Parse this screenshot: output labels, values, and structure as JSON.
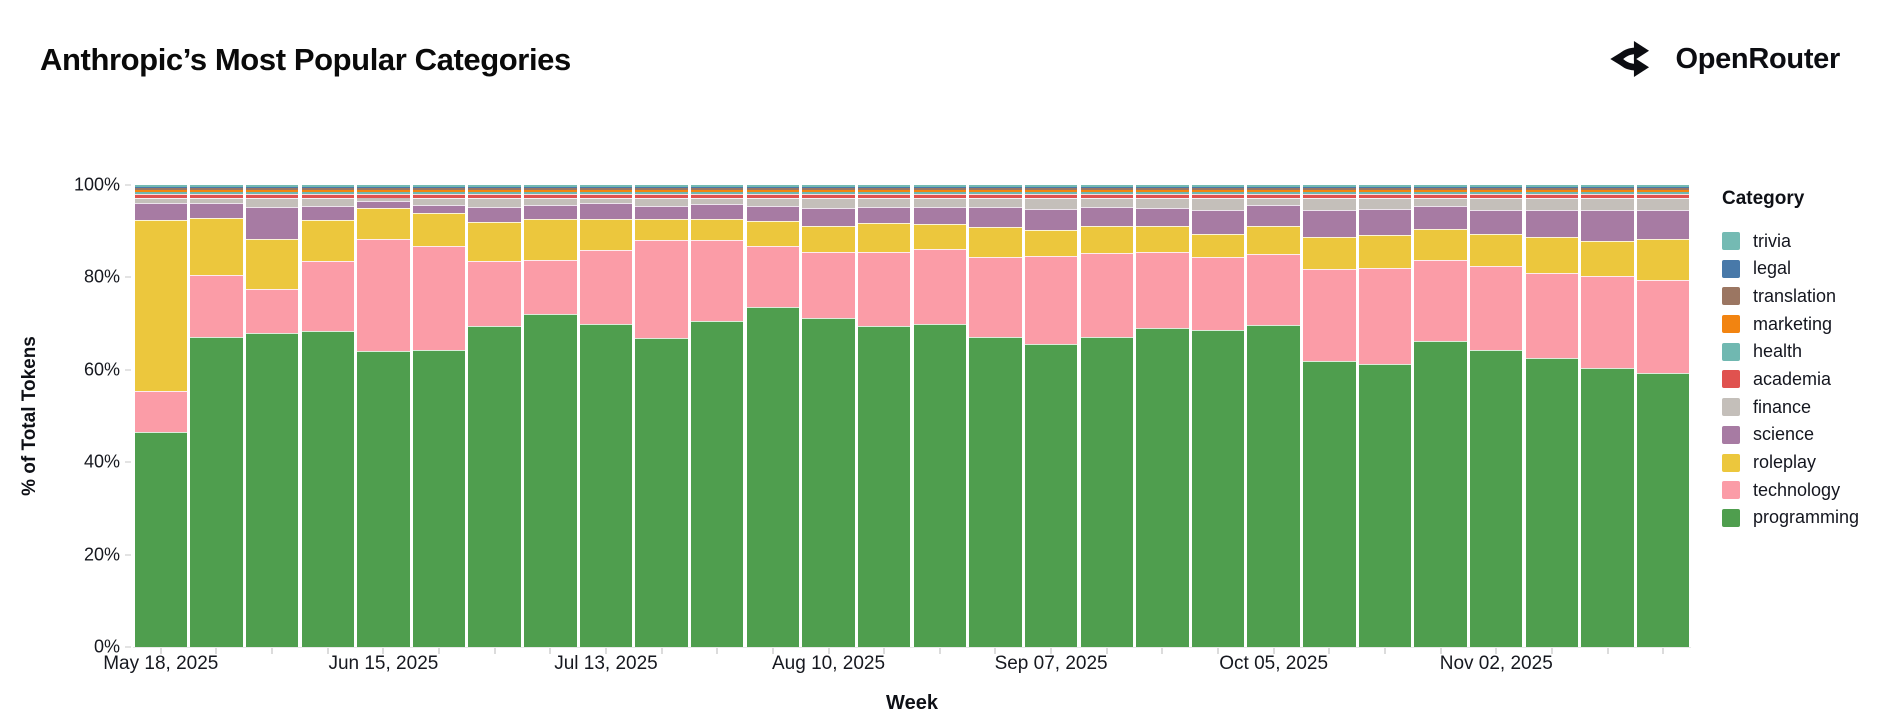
{
  "header": {
    "title": "Anthropic’s Most Popular Categories",
    "brand": "OpenRouter",
    "brand_icon": "openrouter-route-split-icon"
  },
  "chart": {
    "y_axis": {
      "title": "% of Total Tokens",
      "ticks": [
        {
          "label": "0%",
          "value": 0
        },
        {
          "label": "20%",
          "value": 20
        },
        {
          "label": "40%",
          "value": 40
        },
        {
          "label": "60%",
          "value": 60
        },
        {
          "label": "80%",
          "value": 80
        },
        {
          "label": "100%",
          "value": 100
        }
      ]
    },
    "x_axis": {
      "title": "Week",
      "labeled_ticks": [
        {
          "index": 0,
          "label": "May 18, 2025"
        },
        {
          "index": 4,
          "label": "Jun 15, 2025"
        },
        {
          "index": 8,
          "label": "Jul 13, 2025"
        },
        {
          "index": 12,
          "label": "Aug 10, 2025"
        },
        {
          "index": 16,
          "label": "Sep 07, 2025"
        },
        {
          "index": 20,
          "label": "Oct 05, 2025"
        },
        {
          "index": 24,
          "label": "Nov 02, 2025"
        }
      ]
    },
    "legend": {
      "title": "Category",
      "items": [
        {
          "label": "trivia",
          "color": "#74bab3"
        },
        {
          "label": "legal",
          "color": "#4879a9"
        },
        {
          "label": "translation",
          "color": "#9b7662"
        },
        {
          "label": "marketing",
          "color": "#f28411"
        },
        {
          "label": "health",
          "color": "#70b8b1"
        },
        {
          "label": "academia",
          "color": "#e0524f"
        },
        {
          "label": "finance",
          "color": "#c4bfba"
        },
        {
          "label": "science",
          "color": "#a77ba3"
        },
        {
          "label": "roleplay",
          "color": "#ecc73d"
        },
        {
          "label": "technology",
          "color": "#fb9ca7"
        },
        {
          "label": "programming",
          "color": "#4f9e4e"
        }
      ]
    }
  },
  "chart_data": {
    "type": "bar",
    "subtype": "stacked-percent",
    "title": "Anthropic's Most Popular Categories",
    "xlabel": "Week",
    "ylabel": "% of Total Tokens",
    "ylim": [
      0,
      100
    ],
    "grid": false,
    "legend_position": "right",
    "x": [
      "May 18, 2025",
      "May 25, 2025",
      "Jun 01, 2025",
      "Jun 08, 2025",
      "Jun 15, 2025",
      "Jun 22, 2025",
      "Jun 29, 2025",
      "Jul 06, 2025",
      "Jul 13, 2025",
      "Jul 20, 2025",
      "Jul 27, 2025",
      "Aug 03, 2025",
      "Aug 10, 2025",
      "Aug 17, 2025",
      "Aug 24, 2025",
      "Aug 31, 2025",
      "Sep 07, 2025",
      "Sep 14, 2025",
      "Sep 21, 2025",
      "Sep 28, 2025",
      "Oct 05, 2025",
      "Oct 12, 2025",
      "Oct 19, 2025",
      "Oct 26, 2025",
      "Nov 02, 2025",
      "Nov 09, 2025",
      "Nov 16, 2025",
      "Nov 23, 2025"
    ],
    "stack_order": "bottom-to-top",
    "series": [
      {
        "name": "programming",
        "color": "#4f9e4e",
        "values": [
          46.5,
          67.0,
          68.0,
          68.5,
          64.0,
          64.3,
          69.5,
          72.0,
          70.0,
          66.8,
          70.5,
          73.5,
          71.2,
          69.4,
          69.9,
          67.2,
          65.6,
          67.2,
          69.0,
          68.7,
          69.7,
          62.0,
          61.3,
          66.3,
          64.3,
          62.6,
          60.5,
          59.3
        ]
      },
      {
        "name": "technology",
        "color": "#fb9ca7",
        "values": [
          9.0,
          13.5,
          9.5,
          15.0,
          24.3,
          22.5,
          14.0,
          11.7,
          16.0,
          21.2,
          17.7,
          13.3,
          14.2,
          16.2,
          16.2,
          17.3,
          19.0,
          18.1,
          16.4,
          15.8,
          15.3,
          19.8,
          20.7,
          17.5,
          18.2,
          18.4,
          19.8,
          20.1
        ]
      },
      {
        "name": "roleplay",
        "color": "#ecc73d",
        "values": [
          37.0,
          12.3,
          10.8,
          9.0,
          6.8,
          7.2,
          8.5,
          8.9,
          6.6,
          4.6,
          4.4,
          5.4,
          5.7,
          6.1,
          5.4,
          6.5,
          5.6,
          5.8,
          5.7,
          4.8,
          6.1,
          7.0,
          7.1,
          6.6,
          6.8,
          7.8,
          7.5,
          8.9
        ]
      },
      {
        "name": "science",
        "color": "#a77ba3",
        "values": [
          3.6,
          3.3,
          7.0,
          3.0,
          1.4,
          1.7,
          3.3,
          3.1,
          3.5,
          2.8,
          3.2,
          3.2,
          4.0,
          3.5,
          3.7,
          4.2,
          4.6,
          4.2,
          3.9,
          5.4,
          4.5,
          5.9,
          5.7,
          5.0,
          5.4,
          5.7,
          6.7,
          6.2
        ]
      },
      {
        "name": "finance",
        "color": "#c4bfba",
        "values": [
          1.0,
          1.0,
          1.8,
          1.6,
          0.6,
          1.4,
          1.8,
          1.4,
          1.0,
          1.7,
          1.3,
          1.7,
          2.0,
          1.9,
          1.9,
          1.9,
          2.3,
          1.8,
          2.1,
          2.4,
          1.5,
          2.4,
          2.3,
          1.7,
          2.4,
          2.6,
          2.6,
          2.6
        ]
      },
      {
        "name": "academia",
        "color": "#e0524f",
        "values": [
          0.95,
          0.95,
          0.95,
          0.95,
          0.95,
          0.95,
          0.95,
          0.95,
          0.95,
          0.95,
          0.95,
          0.95,
          0.95,
          0.95,
          0.95,
          0.95,
          0.95,
          0.95,
          0.95,
          0.95,
          0.95,
          0.95,
          0.95,
          0.95,
          0.95,
          0.95,
          0.95,
          0.95
        ]
      },
      {
        "name": "health",
        "color": "#70b8b1",
        "values": [
          0.45,
          0.45,
          0.45,
          0.45,
          0.45,
          0.45,
          0.45,
          0.45,
          0.45,
          0.45,
          0.45,
          0.45,
          0.45,
          0.45,
          0.45,
          0.45,
          0.45,
          0.45,
          0.45,
          0.45,
          0.45,
          0.45,
          0.45,
          0.45,
          0.45,
          0.45,
          0.45,
          0.45
        ]
      },
      {
        "name": "marketing",
        "color": "#f28411",
        "values": [
          0.45,
          0.45,
          0.45,
          0.45,
          0.45,
          0.45,
          0.45,
          0.45,
          0.45,
          0.45,
          0.45,
          0.45,
          0.45,
          0.45,
          0.45,
          0.45,
          0.45,
          0.45,
          0.45,
          0.45,
          0.45,
          0.45,
          0.45,
          0.45,
          0.45,
          0.45,
          0.45,
          0.45
        ]
      },
      {
        "name": "translation",
        "color": "#9b7662",
        "values": [
          0.3,
          0.3,
          0.3,
          0.3,
          0.3,
          0.3,
          0.3,
          0.3,
          0.3,
          0.3,
          0.3,
          0.3,
          0.3,
          0.3,
          0.3,
          0.3,
          0.3,
          0.3,
          0.3,
          0.3,
          0.3,
          0.3,
          0.3,
          0.3,
          0.3,
          0.3,
          0.3,
          0.3
        ]
      },
      {
        "name": "legal",
        "color": "#4879a9",
        "values": [
          0.25,
          0.25,
          0.25,
          0.25,
          0.25,
          0.25,
          0.25,
          0.25,
          0.25,
          0.25,
          0.25,
          0.25,
          0.25,
          0.25,
          0.25,
          0.25,
          0.25,
          0.25,
          0.25,
          0.25,
          0.25,
          0.25,
          0.25,
          0.25,
          0.25,
          0.25,
          0.25,
          0.25
        ]
      },
      {
        "name": "trivia",
        "color": "#74bab3",
        "values": [
          0.5,
          0.5,
          0.5,
          0.5,
          0.5,
          0.5,
          0.5,
          0.5,
          0.5,
          0.5,
          0.5,
          0.5,
          0.5,
          0.5,
          0.5,
          0.5,
          0.5,
          0.5,
          0.5,
          0.5,
          0.5,
          0.5,
          0.5,
          0.5,
          0.5,
          0.5,
          0.5,
          0.5
        ]
      }
    ]
  }
}
